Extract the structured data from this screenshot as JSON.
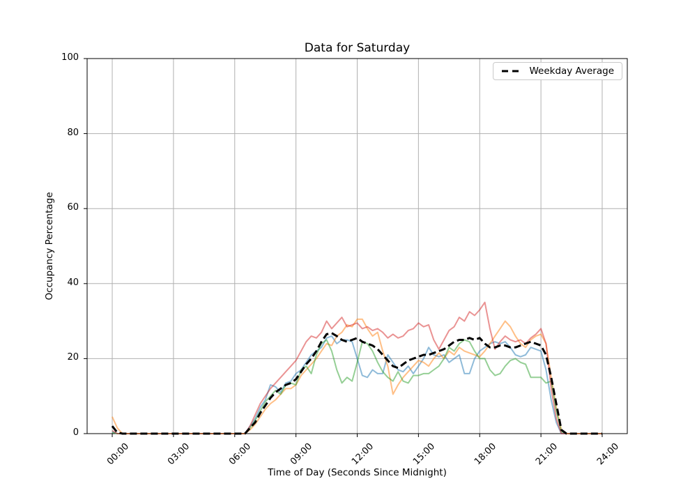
{
  "chart_data": {
    "type": "line",
    "title": "Data for Saturday",
    "xlabel": "Time of Day (Seconds Since Midnight)",
    "ylabel": "Occupancy Percentage",
    "grid": true,
    "grid_color": "#b0b0b0",
    "legend": {
      "label": "Weekday Average",
      "position": "upper right"
    },
    "xlim_hours": [
      -1.23,
      25.23
    ],
    "ylim": [
      0,
      100
    ],
    "y_ticks": [
      0,
      20,
      40,
      60,
      80,
      100
    ],
    "x_ticks": [
      {
        "hours": 0,
        "label": "00:00"
      },
      {
        "hours": 3,
        "label": "03:00"
      },
      {
        "hours": 6,
        "label": "06:00"
      },
      {
        "hours": 9,
        "label": "09:00"
      },
      {
        "hours": 12,
        "label": "12:00"
      },
      {
        "hours": 15,
        "label": "15:00"
      },
      {
        "hours": 18,
        "label": "18:00"
      },
      {
        "hours": 21,
        "label": "21:00"
      },
      {
        "hours": 24,
        "label": "24:00"
      }
    ],
    "x_start_hours": 0,
    "x_step_hours": 0.25,
    "series": [
      {
        "name": "series-1",
        "color": "#1f77b4",
        "opacity": 0.5,
        "width": 2,
        "dash": null,
        "values": [
          0.5,
          0,
          0,
          0,
          0,
          0,
          0,
          0,
          0,
          0,
          0,
          0,
          0,
          0,
          0,
          0,
          0,
          0,
          0,
          0,
          0,
          0,
          0,
          0,
          0,
          0,
          0,
          2,
          4,
          7,
          9,
          13,
          12.5,
          11,
          13.5,
          14,
          16,
          17,
          19,
          21,
          22,
          23,
          25.5,
          26,
          24,
          25,
          25,
          24.5,
          20,
          15.5,
          15,
          17,
          16,
          16,
          21,
          19,
          17,
          16.5,
          18,
          16,
          18,
          20,
          23,
          21,
          20.5,
          21,
          19,
          20,
          21,
          16,
          16,
          20,
          22,
          23,
          24,
          24.5,
          24,
          24.5,
          23,
          21,
          20.5,
          21,
          23,
          22.5,
          22,
          17,
          9,
          3,
          0,
          0,
          0,
          0,
          0,
          0,
          0,
          0,
          0
        ]
      },
      {
        "name": "series-2",
        "color": "#ff7f0e",
        "opacity": 0.5,
        "width": 2,
        "dash": null,
        "values": [
          4.5,
          1.5,
          0,
          0,
          0,
          0,
          0,
          0,
          0,
          0,
          0,
          0,
          0,
          0,
          0,
          0,
          0,
          0,
          0,
          0,
          0,
          0,
          0,
          0,
          0,
          0,
          0,
          1,
          2.5,
          4.5,
          6.5,
          8,
          9,
          10.5,
          12,
          12,
          13,
          15.5,
          17,
          18.5,
          20,
          22,
          24,
          23.5,
          26,
          27,
          29,
          28.5,
          30.5,
          30.5,
          28,
          26,
          27,
          22,
          18,
          10.5,
          13,
          15,
          16.5,
          18,
          19.5,
          19,
          18,
          20,
          21.5,
          20,
          22,
          21,
          23,
          22,
          21.5,
          21,
          20.5,
          22,
          24,
          26,
          28,
          30,
          28.5,
          26,
          24,
          23,
          25,
          26,
          26.5,
          24,
          15,
          7,
          1,
          0,
          0,
          0,
          0,
          0,
          0,
          0,
          0
        ]
      },
      {
        "name": "series-3",
        "color": "#2ca02c",
        "opacity": 0.5,
        "width": 2,
        "dash": null,
        "values": [
          0.3,
          0,
          0,
          0,
          0,
          0,
          0,
          0,
          0,
          0,
          0,
          0,
          0,
          0,
          0,
          0,
          0,
          0,
          0,
          0,
          0,
          0,
          0,
          0,
          0,
          0,
          0,
          1.5,
          3.5,
          6,
          8.5,
          10,
          11.5,
          10.5,
          13,
          13.5,
          13,
          17,
          18,
          16,
          21,
          24,
          25,
          22,
          17,
          13.5,
          15,
          14,
          19,
          24.5,
          24,
          22,
          19,
          16.5,
          15,
          14,
          16.5,
          14,
          13.5,
          15.5,
          15.5,
          16,
          16,
          17,
          18,
          20,
          23,
          22,
          24,
          25,
          24.5,
          22,
          20,
          20,
          17,
          15.5,
          16,
          18,
          19.5,
          20,
          19,
          18.5,
          15,
          15,
          15,
          13.5,
          14,
          6,
          0.5,
          0,
          0,
          0,
          0,
          0,
          0,
          0,
          0
        ]
      },
      {
        "name": "series-4",
        "color": "#d62728",
        "opacity": 0.5,
        "width": 2,
        "dash": null,
        "values": [
          0.8,
          0,
          0,
          0,
          0,
          0,
          0,
          0,
          0,
          0,
          0,
          0,
          0,
          0,
          0,
          0,
          0,
          0,
          0,
          0,
          0,
          0,
          0,
          0,
          0,
          0,
          0,
          2,
          5,
          8,
          10,
          12,
          13.5,
          15,
          16.5,
          18,
          19.5,
          22,
          24.5,
          26,
          25.5,
          27,
          30,
          28,
          29.5,
          31,
          28.5,
          29,
          29.5,
          28,
          28.5,
          27.5,
          28,
          27,
          25.5,
          26.5,
          25.5,
          26,
          27.5,
          28,
          29.5,
          28.5,
          29,
          25,
          22.5,
          25,
          27.5,
          28.5,
          31,
          30,
          32.5,
          31.5,
          33,
          35,
          28,
          22.5,
          24.5,
          26,
          25,
          24.5,
          25,
          24,
          25.5,
          26.5,
          28,
          24,
          12,
          4,
          0,
          0,
          0,
          0,
          0,
          0,
          0,
          0,
          0
        ]
      },
      {
        "name": "weekday-average",
        "color": "#000000",
        "opacity": 1,
        "width": 3,
        "dash": "10 5",
        "values": [
          2,
          0.3,
          0,
          0,
          0,
          0,
          0,
          0,
          0,
          0,
          0,
          0,
          0,
          0,
          0,
          0,
          0,
          0,
          0,
          0,
          0,
          0,
          0,
          0,
          0,
          0,
          0,
          1.5,
          3,
          5.5,
          7.5,
          9.5,
          11,
          12,
          13,
          13.5,
          14.5,
          16.5,
          18.5,
          20,
          22,
          24.5,
          26.5,
          26.8,
          26,
          25,
          24.5,
          25,
          25.5,
          24.5,
          24,
          23.5,
          22.5,
          21,
          19.5,
          18,
          17.5,
          18.5,
          19.5,
          20,
          20.5,
          21,
          21,
          21.5,
          22,
          22.5,
          23.5,
          24.5,
          25,
          25,
          25.5,
          25,
          25.5,
          24,
          23,
          23,
          23.5,
          23.5,
          23,
          23,
          23.5,
          24,
          24.5,
          24,
          23.5,
          21,
          15,
          8,
          1,
          0,
          0,
          0,
          0,
          0,
          0,
          0,
          0
        ]
      }
    ]
  }
}
